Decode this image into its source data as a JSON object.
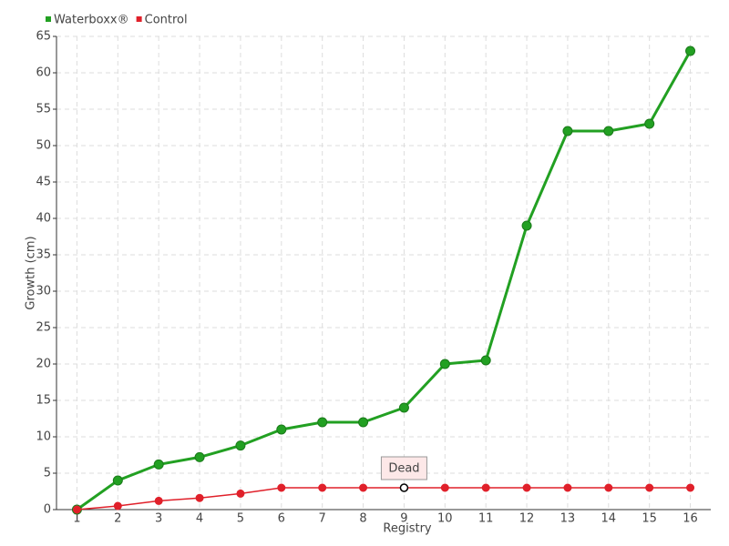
{
  "chart_data": {
    "type": "line",
    "x_label": "Registry",
    "y_label": "Growth (cm)",
    "categories": [
      "1",
      "2",
      "3",
      "4",
      "5",
      "6",
      "7",
      "8",
      "9",
      "10",
      "11",
      "12",
      "13",
      "14",
      "15",
      "16"
    ],
    "series": [
      {
        "name": "Waterboxx®",
        "color": "#22a022",
        "values": [
          0,
          4,
          6.2,
          7.2,
          8.8,
          11,
          12,
          12,
          14,
          20,
          20.5,
          39,
          52,
          52,
          53,
          63
        ]
      },
      {
        "name": "Control",
        "color": "#e0202a",
        "values": [
          0,
          0.5,
          1.2,
          1.6,
          2.2,
          3,
          3,
          3,
          3,
          3,
          3,
          3,
          3,
          3,
          3,
          3
        ]
      }
    ],
    "annotations": [
      {
        "text": "Dead",
        "series": 1,
        "x": "9"
      }
    ],
    "ylim": [
      0,
      65
    ],
    "yticks": [
      0,
      5,
      10,
      15,
      20,
      25,
      30,
      35,
      40,
      45,
      50,
      55,
      60,
      65
    ],
    "grid": true,
    "legend": "top-left"
  }
}
